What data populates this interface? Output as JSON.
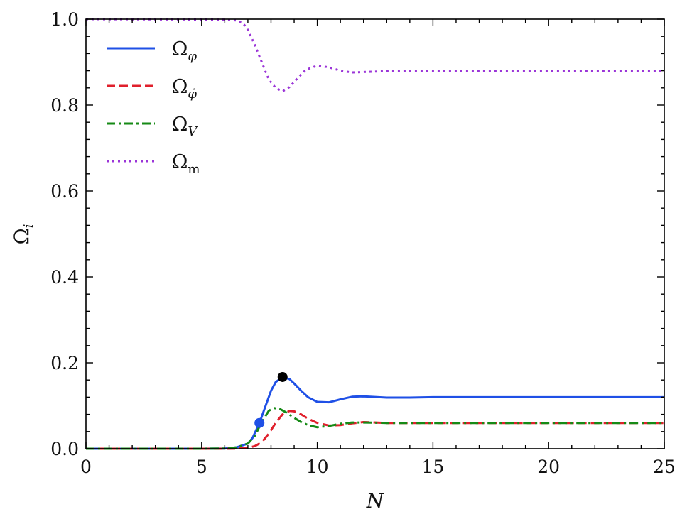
{
  "chart_data": {
    "type": "line",
    "title": "",
    "xlabel": "N",
    "ylabel": "Ω",
    "ylabel_subscript": "i",
    "xlim": [
      0,
      25
    ],
    "ylim": [
      0,
      1.0
    ],
    "xticks": [
      0,
      5,
      10,
      15,
      20,
      25
    ],
    "xtick_labels": [
      "0",
      "5",
      "10",
      "15",
      "20",
      "25"
    ],
    "yticks": [
      0.0,
      0.2,
      0.4,
      0.6,
      0.8,
      1.0
    ],
    "ytick_labels": [
      "0.0",
      "0.2",
      "0.4",
      "0.6",
      "0.8",
      "1.0"
    ],
    "grid": false,
    "legend_position": "top-left",
    "series": [
      {
        "name": "Ω_φ",
        "label_main": "Ω",
        "label_sub": "φ",
        "color": "#1f50e6",
        "dash": "solid",
        "x": [
          0,
          5,
          6,
          6.5,
          7,
          7.2,
          7.5,
          7.8,
          8.0,
          8.2,
          8.5,
          8.8,
          9.0,
          9.3,
          9.6,
          10.0,
          10.5,
          11.0,
          11.5,
          12.0,
          13.0,
          14.0,
          15.0,
          20.0,
          25.0
        ],
        "y": [
          0,
          0,
          0.0005,
          0.003,
          0.012,
          0.025,
          0.06,
          0.105,
          0.135,
          0.155,
          0.167,
          0.162,
          0.152,
          0.135,
          0.12,
          0.109,
          0.108,
          0.115,
          0.121,
          0.122,
          0.119,
          0.119,
          0.12,
          0.12,
          0.12
        ]
      },
      {
        "name": "Ω_φ̇",
        "label_main": "Ω",
        "label_sub": "φ̇",
        "color": "#e0202c",
        "dash": "dashed",
        "x": [
          0,
          6,
          6.5,
          7,
          7.3,
          7.6,
          7.9,
          8.2,
          8.5,
          8.8,
          9.0,
          9.3,
          9.6,
          10.0,
          10.5,
          11.0,
          11.5,
          12.0,
          13.0,
          15.0,
          20.0,
          25.0
        ],
        "y": [
          0,
          0,
          0.0003,
          0.002,
          0.006,
          0.015,
          0.035,
          0.06,
          0.08,
          0.088,
          0.087,
          0.08,
          0.07,
          0.06,
          0.054,
          0.055,
          0.059,
          0.062,
          0.06,
          0.06,
          0.06,
          0.06
        ]
      },
      {
        "name": "Ω_V",
        "label_main": "Ω",
        "label_sub": "V",
        "color": "#168a16",
        "dash": "dashdot",
        "x": [
          0,
          5,
          6,
          6.5,
          7,
          7.3,
          7.6,
          7.9,
          8.1,
          8.4,
          8.7,
          9.0,
          9.3,
          9.6,
          10.0,
          10.5,
          11.0,
          11.5,
          12.0,
          13.0,
          15.0,
          20.0,
          25.0
        ],
        "y": [
          0,
          0,
          0.0005,
          0.003,
          0.012,
          0.03,
          0.062,
          0.088,
          0.095,
          0.092,
          0.083,
          0.072,
          0.062,
          0.055,
          0.05,
          0.053,
          0.058,
          0.061,
          0.061,
          0.06,
          0.06,
          0.06,
          0.06
        ]
      },
      {
        "name": "Ω_m",
        "label_main": "Ω",
        "label_sub": "m",
        "color": "#9b35d8",
        "dash": "dotted",
        "x": [
          0,
          6.0,
          6.5,
          6.8,
          7.0,
          7.3,
          7.6,
          7.9,
          8.2,
          8.5,
          8.8,
          9.1,
          9.5,
          10.0,
          10.5,
          11.0,
          11.5,
          12.0,
          13.0,
          14.0,
          15.0,
          20.0,
          25.0
        ],
        "y": [
          1.0,
          0.999,
          0.997,
          0.99,
          0.975,
          0.94,
          0.9,
          0.86,
          0.84,
          0.832,
          0.842,
          0.86,
          0.882,
          0.892,
          0.888,
          0.88,
          0.876,
          0.877,
          0.879,
          0.88,
          0.88,
          0.88,
          0.88
        ]
      }
    ],
    "markers": [
      {
        "x": 7.5,
        "y": 0.06,
        "color": "#1f50e6"
      },
      {
        "x": 8.5,
        "y": 0.167,
        "color": "#000000"
      }
    ]
  }
}
